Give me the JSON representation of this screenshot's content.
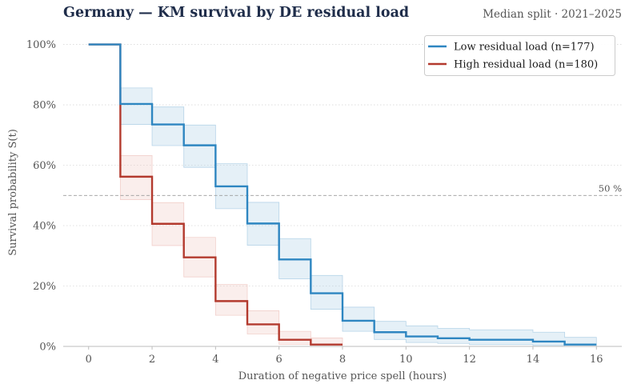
{
  "header": {
    "title": "Germany — KM survival by DE residual load",
    "subtitle": "Median split · 2021–2025"
  },
  "chart_data": {
    "type": "line",
    "title": "Germany — KM survival by DE residual load",
    "subtitle": "Median split · 2021–2025",
    "xlabel": "Duration of negative price spell (hours)",
    "ylabel": "Survival probability  S(t)",
    "xlim": [
      -0.8,
      16.8
    ],
    "ylim": [
      0,
      1.02
    ],
    "xticks": [
      0,
      2,
      4,
      6,
      8,
      10,
      12,
      14,
      16
    ],
    "xtick_labels": [
      "0",
      "2",
      "4",
      "6",
      "8",
      "10",
      "12",
      "14",
      "16"
    ],
    "yticks": [
      0,
      0.2,
      0.4,
      0.6,
      0.8,
      1.0
    ],
    "ytick_labels": [
      "0%",
      "20%",
      "40%",
      "60%",
      "80%",
      "100%"
    ],
    "grid": "horizontal dotted",
    "legend_position": "top-right",
    "reference_line": {
      "y": 0.5,
      "label": "50 %"
    },
    "series": [
      {
        "name": "Low residual load  (n=177)",
        "color": "#2e86c1",
        "band_color": "#a9cce3",
        "step_x": [
          0,
          1,
          2,
          3,
          4,
          5,
          6,
          7,
          8,
          9,
          10,
          11,
          12,
          13,
          14,
          15,
          16
        ],
        "survival": [
          1.0,
          0.803,
          0.735,
          0.666,
          0.53,
          0.407,
          0.288,
          0.176,
          0.085,
          0.047,
          0.033,
          0.027,
          0.022,
          0.022,
          0.016,
          0.006
        ],
        "ci_lower": [
          1.0,
          0.735,
          0.665,
          0.593,
          0.456,
          0.335,
          0.224,
          0.123,
          0.05,
          0.023,
          0.013,
          0.01,
          0.006,
          0.006,
          0.003,
          0.0
        ],
        "ci_upper": [
          1.0,
          0.856,
          0.793,
          0.733,
          0.605,
          0.477,
          0.357,
          0.235,
          0.13,
          0.083,
          0.068,
          0.06,
          0.055,
          0.055,
          0.047,
          0.03
        ]
      },
      {
        "name": "High residual load  (n=180)",
        "color": "#b33a2e",
        "band_color": "#efc6c1",
        "step_x": [
          0,
          1,
          2,
          3,
          4,
          5,
          6,
          7,
          8
        ],
        "survival": [
          1.0,
          0.562,
          0.406,
          0.295,
          0.15,
          0.073,
          0.022,
          0.006
        ],
        "ci_lower": [
          1.0,
          0.486,
          0.334,
          0.23,
          0.103,
          0.041,
          0.007,
          0.0
        ],
        "ci_upper": [
          1.0,
          0.632,
          0.476,
          0.361,
          0.205,
          0.118,
          0.05,
          0.028
        ]
      }
    ]
  }
}
